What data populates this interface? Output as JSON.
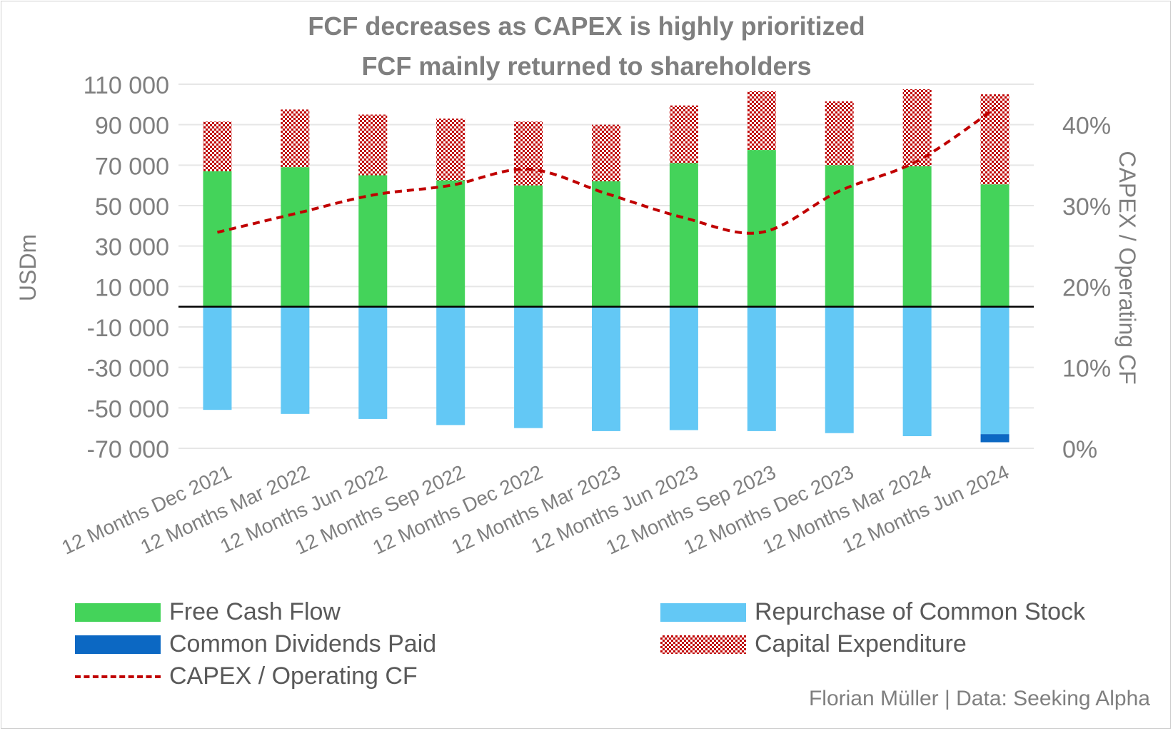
{
  "chart_data": {
    "type": "bar",
    "title": "FCF decreases as CAPEX is highly prioritized",
    "subtitle": "FCF mainly returned to shareholders",
    "ylabel": "USDm",
    "y2label": "CAPEX / Operating CF",
    "ylim": [
      -70000,
      110000
    ],
    "y2lim": [
      0,
      0.45
    ],
    "yticks": [
      "110 000",
      "90 000",
      "70 000",
      "50 000",
      "30 000",
      "10 000",
      "-10 000",
      "-30 000",
      "-50 000",
      "-70 000"
    ],
    "y2ticks": [
      "40%",
      "30%",
      "20%",
      "10%",
      "0%"
    ],
    "categories": [
      "12 Months Dec 2021",
      "12 Months Mar 2022",
      "12 Months Jun 2022",
      "12 Months Sep 2022",
      "12 Months Dec 2022",
      "12 Months Mar 2023",
      "12 Months Jun 2023",
      "12 Months Sep 2023",
      "12 Months Dec 2023",
      "12 Months Mar 2024",
      "12 Months Jun 2024"
    ],
    "series": [
      {
        "name": "Free Cash Flow",
        "type": "bar",
        "color": "#44d35a",
        "values": [
          67000,
          69000,
          65000,
          62500,
          60000,
          62000,
          71000,
          77500,
          70000,
          69500,
          60500
        ]
      },
      {
        "name": "Capital Expenditure",
        "type": "bar",
        "color": "#c00000",
        "pattern": "checker",
        "values": [
          24500,
          28500,
          30000,
          30500,
          31500,
          28000,
          28500,
          29000,
          31500,
          38000,
          44500
        ]
      },
      {
        "name": "Repurchase of Common Stock",
        "type": "bar",
        "color": "#63c8f5",
        "values": [
          -51000,
          -53000,
          -55500,
          -58500,
          -60000,
          -61500,
          -61000,
          -61500,
          -62500,
          -64000,
          -63000
        ]
      },
      {
        "name": "Common Dividends Paid",
        "type": "bar",
        "color": "#0c68c3",
        "values": [
          0,
          0,
          0,
          0,
          0,
          0,
          0,
          0,
          0,
          0,
          -4000
        ]
      },
      {
        "name": "CAPEX / Operating CF",
        "type": "line",
        "axis": "secondary",
        "color": "#c00000",
        "values": [
          0.267,
          0.29,
          0.313,
          0.325,
          0.345,
          0.315,
          0.285,
          0.267,
          0.318,
          0.355,
          0.42
        ]
      }
    ]
  },
  "legend": {
    "fcf": "Free Cash Flow",
    "dividends": "Common Dividends Paid",
    "ratio": "CAPEX / Operating CF",
    "repurchase": "Repurchase of Common Stock",
    "capex": "Capital Expenditure"
  },
  "credit": "Florian Müller | Data: Seeking Alpha",
  "colors": {
    "fcf": "#44d35a",
    "repurchase": "#63c8f5",
    "dividends": "#0c68c3",
    "capex": "#c00000",
    "ratio": "#c00000"
  }
}
